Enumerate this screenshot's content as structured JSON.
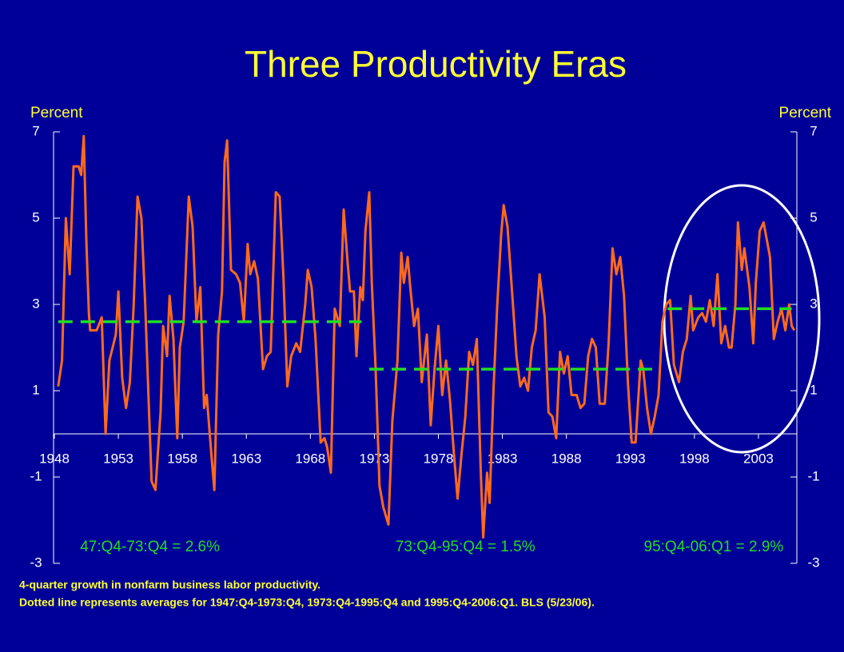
{
  "chart_data": {
    "type": "line",
    "title": "Three Productivity Eras",
    "y_label": "Percent",
    "y2_label": "Percent",
    "xlim": [
      1948,
      2006
    ],
    "xticks": [
      1948,
      1953,
      1958,
      1963,
      1968,
      1973,
      1978,
      1983,
      1988,
      1993,
      1998,
      2003
    ],
    "ylim": [
      -3,
      7
    ],
    "yticks": [
      7,
      5,
      3,
      1,
      -1,
      -3
    ],
    "y2lim": [
      -3,
      7
    ],
    "y2ticks": [
      7,
      5,
      3,
      1,
      -1,
      -3
    ],
    "x": [
      1948.3,
      1948.6,
      1948.9,
      1949.2,
      1949.5,
      1949.9,
      1950.1,
      1950.3,
      1950.5,
      1950.7,
      1950.8,
      1951.3,
      1951.7,
      1952.0,
      1952.3,
      1952.8,
      1953.0,
      1953.3,
      1953.6,
      1953.9,
      1954.2,
      1954.5,
      1954.8,
      1955.1,
      1955.4,
      1955.6,
      1955.9,
      1956.3,
      1956.5,
      1956.8,
      1957.0,
      1957.3,
      1957.6,
      1957.8,
      1958.1,
      1958.5,
      1958.8,
      1959.1,
      1959.4,
      1959.7,
      1959.9,
      1960.3,
      1960.5,
      1960.8,
      1961.1,
      1961.3,
      1961.5,
      1961.8,
      1962.2,
      1962.5,
      1962.8,
      1963.1,
      1963.3,
      1963.6,
      1963.9,
      1964.3,
      1964.6,
      1964.9,
      1965.3,
      1965.6,
      1965.9,
      1966.2,
      1966.5,
      1966.9,
      1967.2,
      1967.6,
      1967.8,
      1968.1,
      1968.4,
      1968.8,
      1969.1,
      1969.3,
      1969.6,
      1969.9,
      1970.3,
      1970.6,
      1970.9,
      1971.1,
      1971.4,
      1971.6,
      1971.9,
      1972.1,
      1972.3,
      1972.6,
      1972.8,
      1973.1,
      1973.4,
      1973.7,
      1974.1,
      1974.4,
      1974.8,
      1975.1,
      1975.3,
      1975.6,
      1975.8,
      1976.1,
      1976.4,
      1976.7,
      1977.1,
      1977.4,
      1977.7,
      1978.0,
      1978.3,
      1978.6,
      1978.9,
      1979.2,
      1979.5,
      1979.8,
      1980.1,
      1980.4,
      1980.7,
      1981.0,
      1981.3,
      1981.5,
      1981.8,
      1982.0,
      1982.3,
      1982.6,
      1982.9,
      1983.1,
      1983.4,
      1983.8,
      1984.1,
      1984.4,
      1984.7,
      1985.0,
      1985.3,
      1985.6,
      1985.9,
      1986.3,
      1986.6,
      1986.9,
      1987.2,
      1987.5,
      1987.8,
      1988.1,
      1988.4,
      1988.8,
      1989.1,
      1989.4,
      1989.7,
      1990.0,
      1990.3,
      1990.6,
      1991.0,
      1991.3,
      1991.6,
      1991.9,
      1992.2,
      1992.5,
      1992.8,
      1993.1,
      1993.4,
      1993.8,
      1994.0,
      1994.3,
      1994.6,
      1994.9,
      1995.2,
      1995.5,
      1995.8,
      1996.1,
      1996.4,
      1996.8,
      1997.1,
      1997.4,
      1997.7,
      1997.9,
      1998.3,
      1998.6,
      1998.9,
      1999.2,
      1999.5,
      1999.8,
      2000.1,
      2000.4,
      2000.7,
      2000.9,
      2001.2,
      2001.4,
      2001.7,
      2001.9,
      2002.3,
      2002.6,
      2002.8,
      2003.1,
      2003.4,
      2003.9,
      2004.2,
      2004.5,
      2004.8,
      2005.1,
      2005.4,
      2005.6,
      2005.8
    ],
    "series": [
      {
        "color": "#ff6a1a",
        "values": [
          1.1,
          1.7,
          5.0,
          3.7,
          6.2,
          6.2,
          6.0,
          6.9,
          4.5,
          2.8,
          2.4,
          2.4,
          2.7,
          0.0,
          1.7,
          2.3,
          3.3,
          1.3,
          0.6,
          1.2,
          3.0,
          5.5,
          5.0,
          3.0,
          0.5,
          -1.1,
          -1.3,
          0.5,
          2.5,
          1.8,
          3.2,
          2.2,
          -0.1,
          2.0,
          2.6,
          5.5,
          4.8,
          2.6,
          3.4,
          0.6,
          0.9,
          -0.6,
          -1.3,
          2.3,
          3.3,
          6.3,
          6.8,
          3.8,
          3.7,
          3.5,
          2.6,
          4.4,
          3.7,
          4.0,
          3.6,
          1.5,
          1.8,
          1.9,
          5.6,
          5.5,
          3.6,
          1.1,
          1.8,
          2.1,
          1.9,
          3.0,
          3.8,
          3.4,
          2.2,
          -0.2,
          -0.1,
          -0.3,
          -0.9,
          2.9,
          2.5,
          5.2,
          4.0,
          3.3,
          3.3,
          1.8,
          3.4,
          3.1,
          4.7,
          5.6,
          3.5,
          1.5,
          -1.2,
          -1.7,
          -2.1,
          0.3,
          1.7,
          4.2,
          3.5,
          4.1,
          3.4,
          2.5,
          2.9,
          1.2,
          2.3,
          0.2,
          1.5,
          2.5,
          0.9,
          1.7,
          0.8,
          -0.4,
          -1.5,
          -0.5,
          0.4,
          1.9,
          1.6,
          2.2,
          -0.8,
          -2.4,
          -0.9,
          -1.6,
          1.0,
          3.0,
          4.6,
          5.3,
          4.8,
          3.1,
          1.8,
          1.1,
          1.3,
          1.0,
          2.0,
          2.4,
          3.7,
          2.7,
          0.5,
          0.4,
          -0.1,
          1.9,
          1.4,
          1.8,
          0.9,
          0.9,
          0.6,
          0.7,
          1.8,
          2.2,
          2.0,
          0.7,
          0.7,
          2.1,
          4.3,
          3.7,
          4.1,
          3.2,
          1.2,
          -0.2,
          -0.2,
          1.7,
          1.5,
          0.6,
          0.0,
          0.4,
          0.9,
          2.6,
          3.0,
          3.1,
          1.6,
          1.2,
          1.9,
          2.2,
          3.2,
          2.4,
          2.7,
          2.8,
          2.6,
          3.1,
          2.5,
          3.7,
          2.1,
          2.5,
          2.0,
          2.0,
          3.0,
          4.9,
          3.8,
          4.3,
          3.4,
          2.1,
          3.5,
          4.7,
          4.9,
          4.1,
          2.2,
          2.6,
          2.9,
          2.4,
          3.0,
          2.5,
          2.4
        ]
      }
    ],
    "averages": [
      {
        "label": "47:Q4-73:Q4 = 2.6%",
        "value": 2.6,
        "x": [
          1948.3,
          1972
        ]
      },
      {
        "label": "73:Q4-95:Q4 = 1.5%",
        "value": 1.5,
        "x": [
          1972.6,
          1995.1
        ]
      },
      {
        "label": "95:Q4-06:Q1 = 2.9%",
        "value": 2.9,
        "x": [
          1995.9,
          2005.6
        ]
      }
    ],
    "average_color": "#22dd22",
    "notes": [
      "4-quarter growth in nonfarm business labor productivity.",
      "Dotted line represents averages for 1947:Q4-1973:Q4, 1973:Q4-1995:Q4 and 1995:Q4-2006:Q1.  BLS (5/23/06)."
    ]
  }
}
